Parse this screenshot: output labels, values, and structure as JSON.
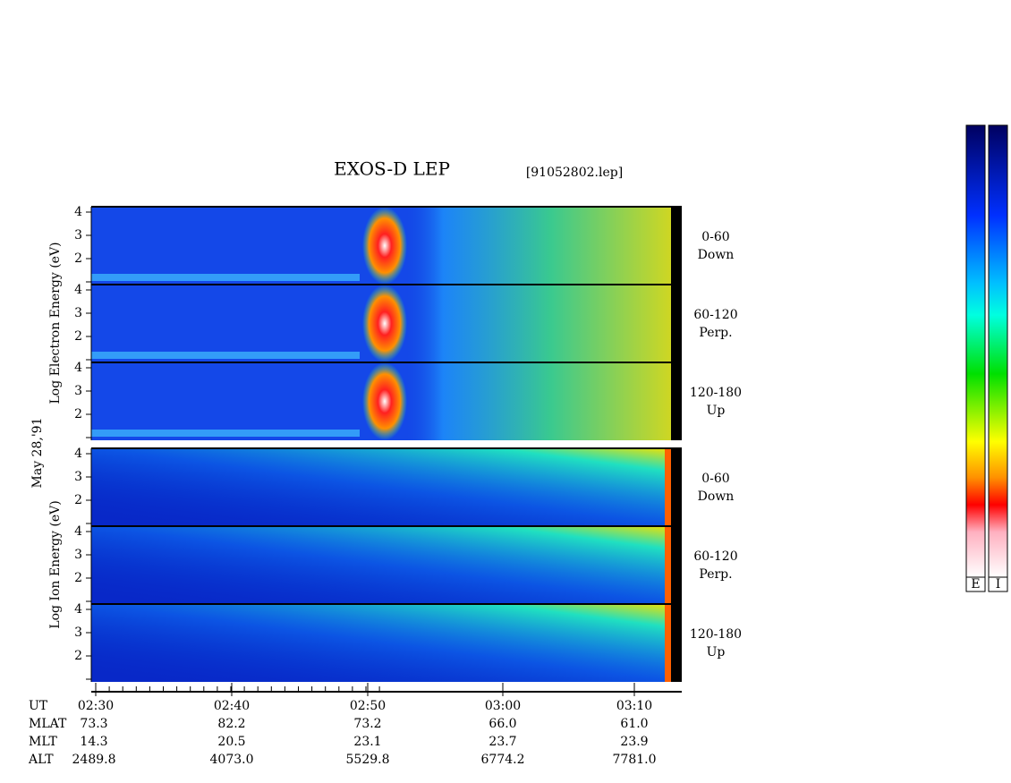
{
  "title": "EXOS-D LEP",
  "file": "[91052802.lep]",
  "date": "May 28,'91",
  "groups": [
    {
      "axis_label": "Log  Electron  Energy (eV)",
      "panels": [
        {
          "range": "0-60",
          "dir": "Down"
        },
        {
          "range": "60-120",
          "dir": "Perp."
        },
        {
          "range": "120-180",
          "dir": "Up"
        }
      ]
    },
    {
      "axis_label": "Log  Ion  Energy (eV)",
      "panels": [
        {
          "range": "0-60",
          "dir": "Down"
        },
        {
          "range": "60-120",
          "dir": "Perp."
        },
        {
          "range": "120-180",
          "dir": "Up"
        }
      ]
    }
  ],
  "y_tick_labels": [
    "2",
    "3",
    "4"
  ],
  "x_rows": [
    {
      "name": "UT",
      "values": [
        "02:30",
        "02:40",
        "02:50",
        "03:00",
        "03:10"
      ]
    },
    {
      "name": "MLAT",
      "values": [
        "73.3",
        "82.2",
        "73.2",
        "66.0",
        "61.0"
      ]
    },
    {
      "name": "MLT",
      "values": [
        "14.3",
        "20.5",
        "23.1",
        "23.7",
        "23.9"
      ]
    },
    {
      "name": "ALT",
      "values": [
        "2489.8",
        "4073.0",
        "5529.8",
        "6774.2",
        "7781.0"
      ]
    }
  ],
  "colorbars": [
    "E",
    "I"
  ]
}
